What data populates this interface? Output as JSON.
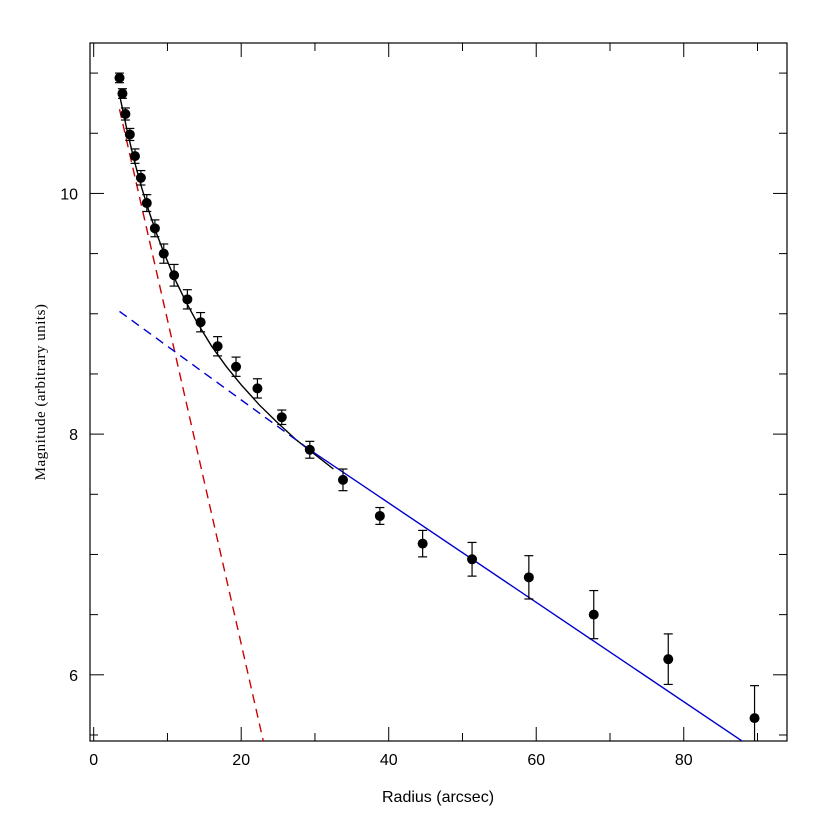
{
  "chart_data": {
    "type": "scatter",
    "title": "",
    "xlabel": "Radius (arcsec)",
    "ylabel": "Magnitude (arbitrary units)",
    "xlim": [
      -0.5,
      94
    ],
    "ylim": [
      5.45,
      11.25
    ],
    "grid": false,
    "x_ticks": [
      0,
      20,
      40,
      60,
      80
    ],
    "x_minor_ticks": [
      10,
      30,
      50,
      70,
      90
    ],
    "y_ticks": [
      6,
      8,
      10
    ],
    "y_minor_ticks": [
      5.5,
      6.5,
      7,
      7.5,
      8.5,
      9,
      9.5,
      10.5,
      11
    ],
    "series": [
      {
        "kind": "points_with_errorbars",
        "color": "#000000",
        "x": [
          3.5,
          3.9,
          4.3,
          4.9,
          5.6,
          6.4,
          7.2,
          8.3,
          9.5,
          10.9,
          12.7,
          14.5,
          16.8,
          19.3,
          22.2,
          25.5,
          29.3,
          33.8,
          38.8,
          44.6,
          51.3,
          59.0,
          67.8,
          77.9,
          89.6
        ],
        "y": [
          10.96,
          10.83,
          10.66,
          10.49,
          10.31,
          10.13,
          9.92,
          9.71,
          9.5,
          9.32,
          9.12,
          8.93,
          8.73,
          8.56,
          8.38,
          8.14,
          7.87,
          7.62,
          7.32,
          7.09,
          6.96,
          6.81,
          6.5,
          6.13,
          5.64
        ],
        "yerr": [
          0.04,
          0.04,
          0.05,
          0.05,
          0.06,
          0.06,
          0.07,
          0.07,
          0.08,
          0.09,
          0.08,
          0.08,
          0.08,
          0.08,
          0.08,
          0.06,
          0.07,
          0.09,
          0.07,
          0.11,
          0.14,
          0.18,
          0.2,
          0.21,
          0.27
        ]
      },
      {
        "kind": "line",
        "style": "solid",
        "color": "#000000",
        "x": [
          3.5,
          4.5,
          5.5,
          6.5,
          7.5,
          8.5,
          9.5,
          11,
          12.5,
          14,
          16,
          18,
          20,
          22.5,
          25,
          27.5,
          30,
          32.5
        ],
        "y": [
          10.82,
          10.53,
          10.27,
          10.05,
          9.85,
          9.67,
          9.51,
          9.29,
          9.1,
          8.93,
          8.73,
          8.56,
          8.41,
          8.24,
          8.09,
          7.95,
          7.83,
          7.71
        ]
      },
      {
        "kind": "line",
        "style": "solid",
        "color": "#0000cc",
        "x": [
          29.3,
          89.6
        ],
        "y": [
          7.87,
          5.38
        ]
      },
      {
        "kind": "line",
        "style": "dashed",
        "color": "#cc0000",
        "x": [
          3.5,
          23.0
        ],
        "y": [
          10.7,
          5.45
        ]
      },
      {
        "kind": "line",
        "style": "dashed",
        "color": "#0000cc",
        "x": [
          3.5,
          29.3
        ],
        "y": [
          9.02,
          7.87
        ]
      }
    ]
  }
}
